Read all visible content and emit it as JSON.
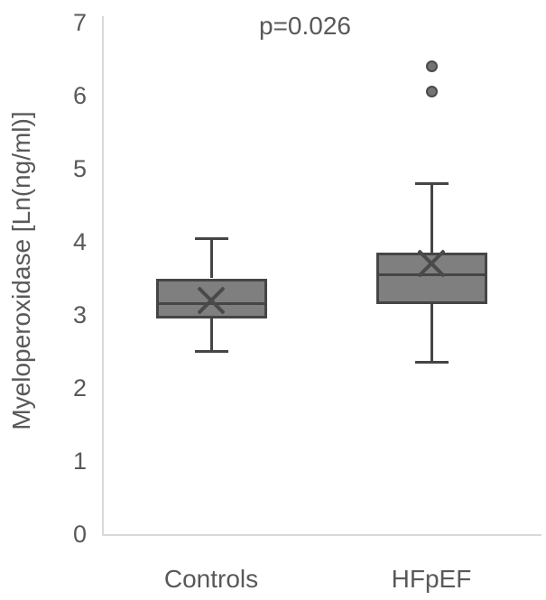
{
  "chart_data": {
    "type": "boxplot",
    "title": "",
    "annotation": "p=0.026",
    "xlabel": "",
    "ylabel": "Myeloperoxidase [Ln(ng/ml)]",
    "ylim": [
      0,
      7
    ],
    "yticks": [
      0,
      1,
      2,
      3,
      4,
      5,
      6,
      7
    ],
    "grid": false,
    "legend": false,
    "categories": [
      "Controls",
      "HFpEF"
    ],
    "series": [
      {
        "name": "Controls",
        "whisker_low": 2.5,
        "q1": 2.95,
        "median": 3.15,
        "q3": 3.5,
        "whisker_high": 4.05,
        "mean": 3.2,
        "outliers": []
      },
      {
        "name": "HFpEF",
        "whisker_low": 2.35,
        "q1": 3.15,
        "median": 3.55,
        "q3": 3.85,
        "whisker_high": 4.8,
        "mean": 3.7,
        "outliers": [
          6.05,
          6.4
        ]
      }
    ],
    "colors": {
      "box_fill": "#7f7f7f",
      "box_border": "#454545",
      "whisker": "#454545",
      "median_line": "#454545",
      "mean_marker": "#4a4a4a",
      "outlier_fill": "#737373",
      "outlier_border": "#4a4a4a",
      "axis_line": "#d9d9d9",
      "text": "#595959",
      "background": "#ffffff"
    }
  }
}
